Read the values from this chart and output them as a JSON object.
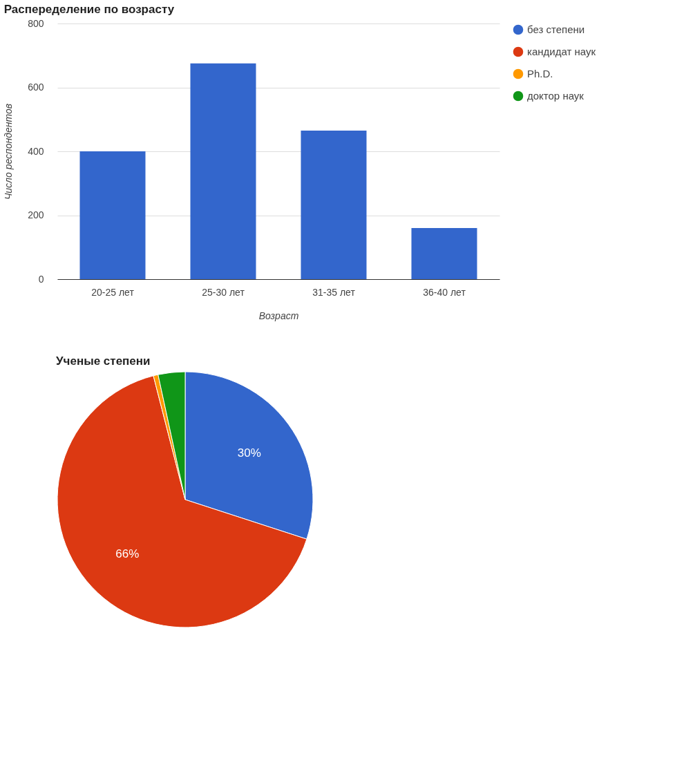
{
  "chart_data": [
    {
      "type": "bar",
      "title": "Распеределение по возрасту",
      "xlabel": "Возраст",
      "ylabel": "Число респондентов",
      "categories": [
        "20-25 лет",
        "25-30 лет",
        "31-35 лет",
        "36-40 лет"
      ],
      "values": [
        400,
        675,
        465,
        160
      ],
      "color": "#3366cc",
      "ylim": [
        0,
        800
      ],
      "yticks": [
        0,
        200,
        400,
        600,
        800
      ],
      "grid": "y"
    },
    {
      "type": "pie",
      "title": "Ученые степени",
      "legend": "right",
      "categories": [
        "без степени",
        "кандидат наук",
        "Ph.D.",
        "доктор наук"
      ],
      "values": [
        30,
        66,
        0.6,
        3.4
      ],
      "colors": [
        "#3366cc",
        "#dc3912",
        "#ff9900",
        "#109618"
      ],
      "value_labels": [
        "30%",
        "66%",
        null,
        null
      ]
    }
  ]
}
